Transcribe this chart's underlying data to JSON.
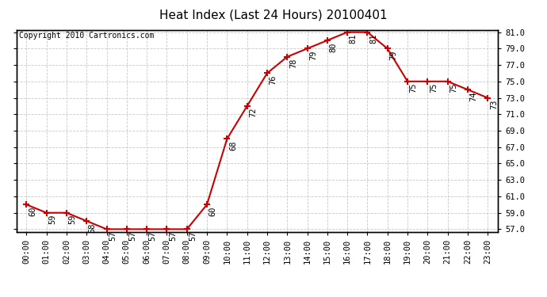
{
  "title": "Heat Index (Last 24 Hours) 20100401",
  "copyright": "Copyright 2010 Cartronics.com",
  "hours": [
    "00:00",
    "01:00",
    "02:00",
    "03:00",
    "04:00",
    "05:00",
    "06:00",
    "07:00",
    "08:00",
    "09:00",
    "10:00",
    "11:00",
    "12:00",
    "13:00",
    "14:00",
    "15:00",
    "16:00",
    "17:00",
    "18:00",
    "19:00",
    "20:00",
    "21:00",
    "22:00",
    "23:00"
  ],
  "values": [
    60,
    59,
    59,
    58,
    57,
    57,
    57,
    57,
    57,
    60,
    68,
    72,
    76,
    78,
    79,
    80,
    81,
    81,
    79,
    75,
    75,
    75,
    74,
    73
  ],
  "ylim_min": 57.0,
  "ylim_max": 81.0,
  "ytick_step": 2.0,
  "line_color": "#cc0000",
  "marker_color": "#cc0000",
  "bg_color": "#ffffff",
  "grid_color": "#c8c8c8",
  "title_fontsize": 11,
  "label_fontsize": 7.5,
  "annotation_fontsize": 7.5,
  "copyright_fontsize": 7
}
